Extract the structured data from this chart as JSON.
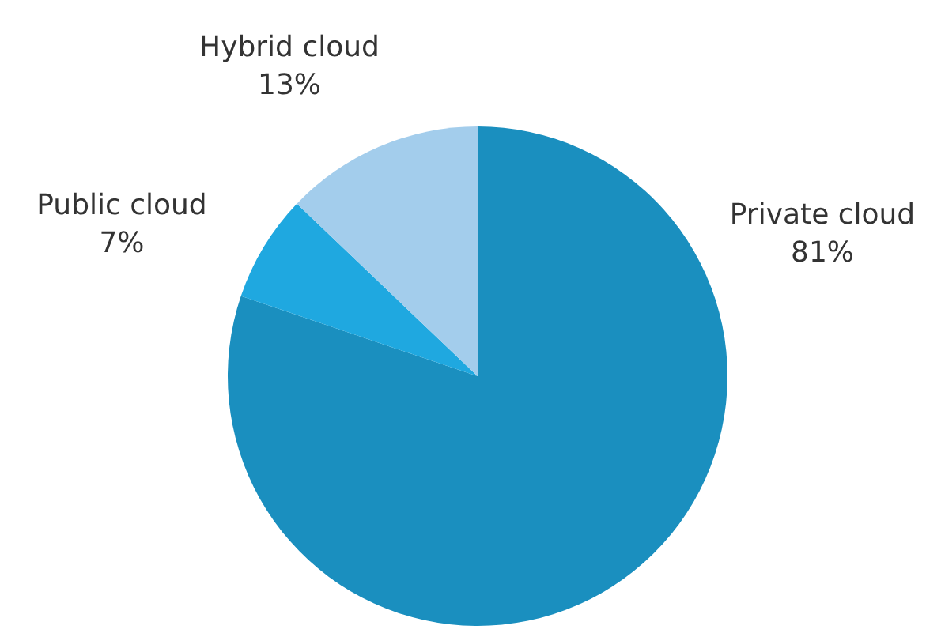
{
  "chart_data": {
    "type": "pie",
    "categories": [
      "Private cloud",
      "Public cloud",
      "Hybrid cloud"
    ],
    "values": [
      81,
      7,
      13
    ],
    "value_labels": [
      "81%",
      "7%",
      "13%"
    ],
    "colors": [
      "#1a8fbf",
      "#1fa8e0",
      "#a3cdec"
    ]
  }
}
